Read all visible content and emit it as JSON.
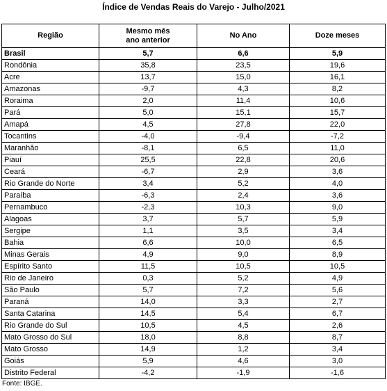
{
  "title": "Índice de Vendas Reais do Varejo - Julho/2021",
  "table": {
    "header": [
      "Região",
      "Mesmo mês\nano anterior",
      "No Ano",
      "Doze meses"
    ],
    "rows": [
      [
        "Brasil",
        "5,7",
        "6,6",
        "5,9"
      ],
      [
        "Rondônia",
        "35,8",
        "23,5",
        "19,6"
      ],
      [
        "Acre",
        "13,7",
        "15,0",
        "16,1"
      ],
      [
        "Amazonas",
        "-9,7",
        "4,3",
        "8,2"
      ],
      [
        "Roraima",
        "2,0",
        "11,4",
        "10,6"
      ],
      [
        "Pará",
        "5,0",
        "15,1",
        "15,7"
      ],
      [
        "Amapá",
        "4,5",
        "27,8",
        "22,0"
      ],
      [
        "Tocantins",
        "-4,0",
        "-9,4",
        "-7,2"
      ],
      [
        "Maranhão",
        "-8,1",
        "6,5",
        "11,0"
      ],
      [
        "Piauí",
        "25,5",
        "22,8",
        "20,6"
      ],
      [
        "Ceará",
        "-6,7",
        "2,9",
        "3,6"
      ],
      [
        "Rio Grande do Norte",
        "3,4",
        "5,2",
        "4,0"
      ],
      [
        "Paraíba",
        "-6,3",
        "2,4",
        "3,6"
      ],
      [
        "Pernambuco",
        "-2,3",
        "10,3",
        "9,0"
      ],
      [
        "Alagoas",
        "3,7",
        "5,7",
        "5,9"
      ],
      [
        "Sergipe",
        "1,1",
        "3,5",
        "3,4"
      ],
      [
        "Bahia",
        "6,6",
        "10,0",
        "6,5"
      ],
      [
        "Minas Gerais",
        "4,9",
        "9,0",
        "8,9"
      ],
      [
        "Espírito Santo",
        "11,5",
        "10,5",
        "10,5"
      ],
      [
        "Rio de Janeiro",
        "0,3",
        "5,2",
        "4,9"
      ],
      [
        "São Paulo",
        "5,7",
        "7,2",
        "5,6"
      ],
      [
        "Paraná",
        "14,0",
        "3,3",
        "2,7"
      ],
      [
        "Santa Catarina",
        "14,5",
        "5,4",
        "6,7"
      ],
      [
        "Rio Grande do Sul",
        "10,5",
        "4,5",
        "2,6"
      ],
      [
        "Mato Grosso do Sul",
        "18,0",
        "8,8",
        "8,7"
      ],
      [
        "Mato Grosso",
        "14,9",
        "1,2",
        "3,4"
      ],
      [
        "Goiás",
        "5,9",
        "4,6",
        "3,0"
      ],
      [
        "Distrito Federal",
        "-4,2",
        "-1,9",
        "-1,6"
      ]
    ]
  },
  "footer": "Fonte: IBGE."
}
